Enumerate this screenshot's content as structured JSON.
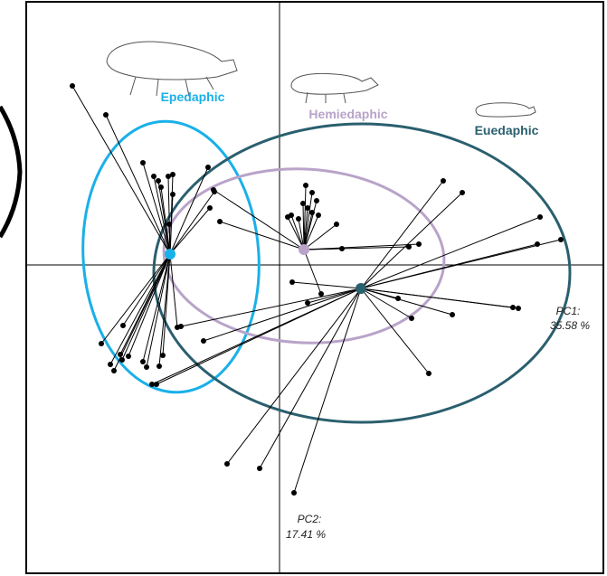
{
  "groups": [
    {
      "label": "Epedaphic"
    },
    {
      "label": "Hemiedaphic"
    },
    {
      "label": "Euedaphic"
    }
  ],
  "axes": {
    "pc1": {
      "name": "PC1:",
      "variance": "35.58 %"
    },
    "pc2": {
      "name": "PC2:",
      "variance": "17.41 %"
    }
  }
}
